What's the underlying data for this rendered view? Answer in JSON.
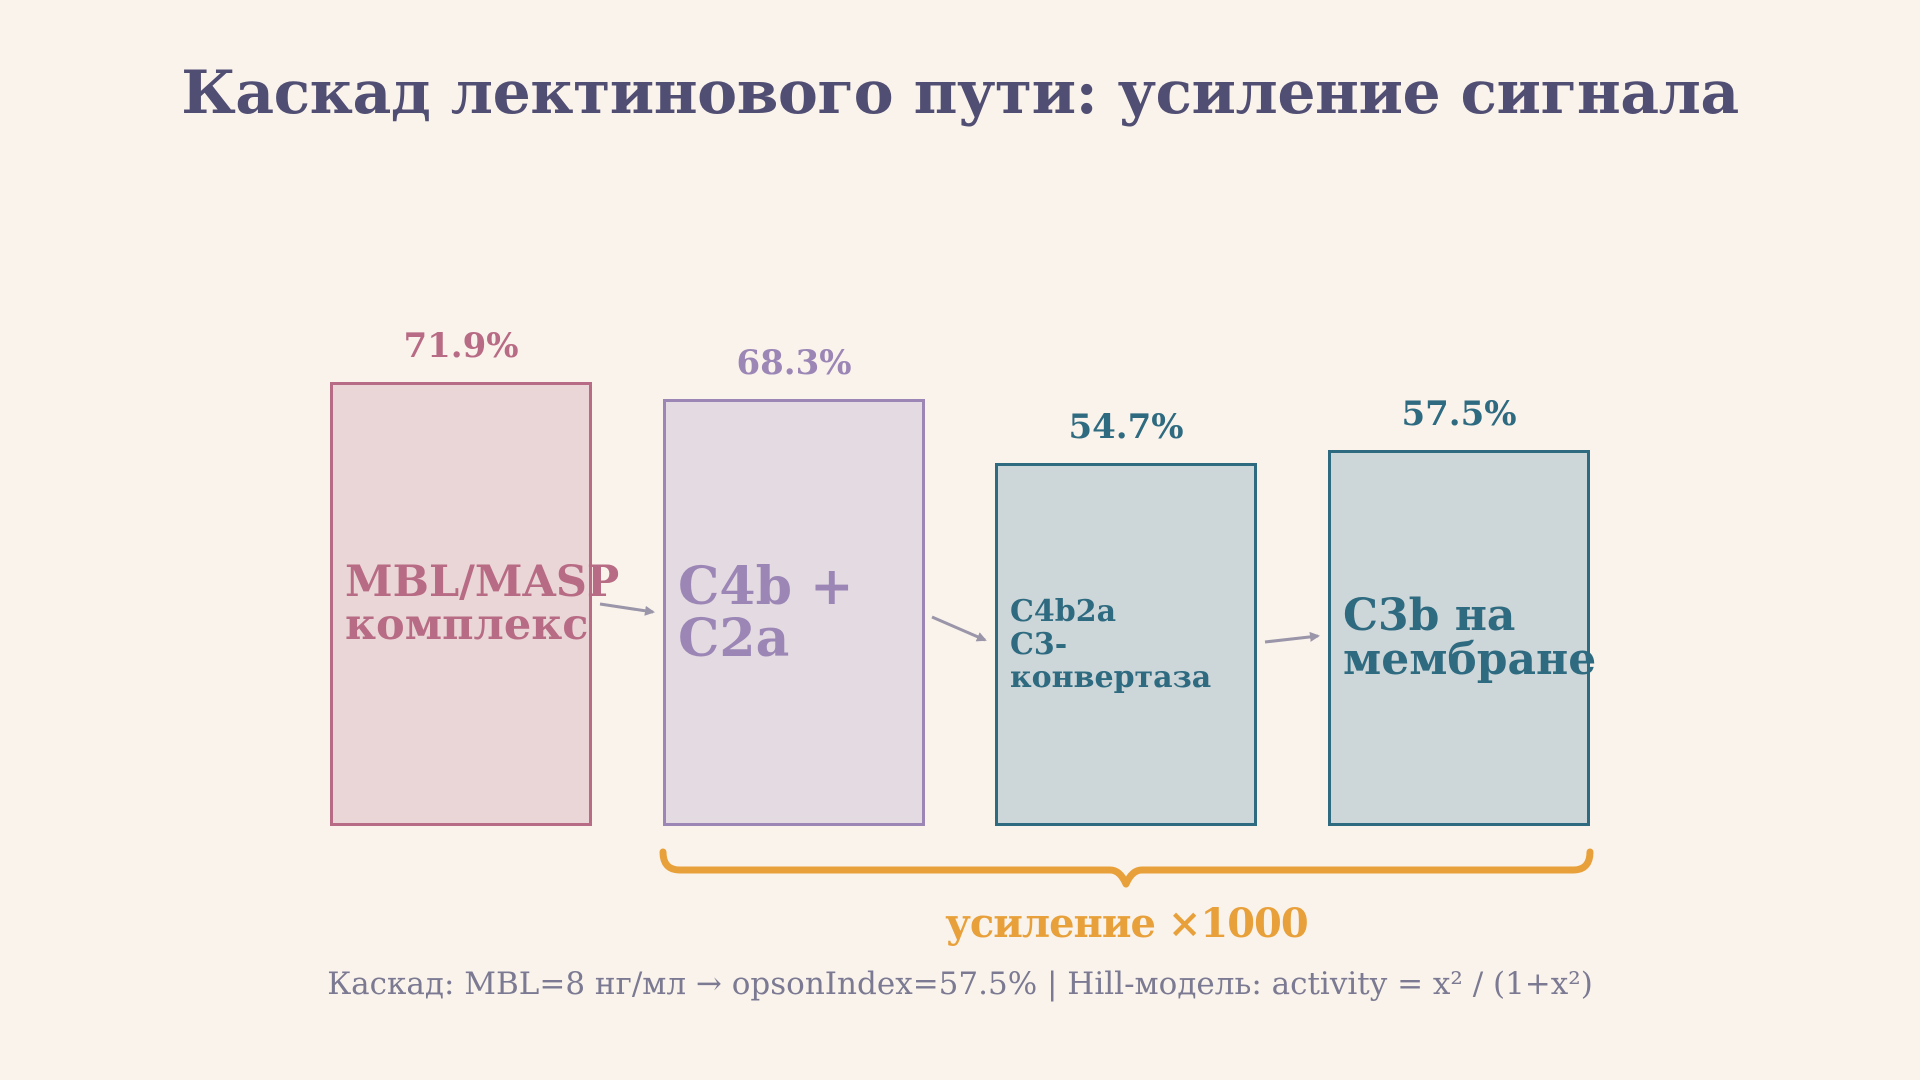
{
  "title": "Каскад лектинового пути: усиление сигнала",
  "stages": [
    {
      "label": "MBL/MASP\nкомплекс",
      "percent": "71.9%",
      "color": "#b86b84"
    },
    {
      "label": "C4b + C2a",
      "percent": "68.3%",
      "color": "#9b86b5"
    },
    {
      "label": "C4b2a\nC3-конвертаза",
      "percent": "54.7%",
      "color": "#2e6a80"
    },
    {
      "label": "C3b на\nмембране",
      "percent": "57.5%",
      "color": "#2e6a80"
    }
  ],
  "amplification": {
    "label": "усиление ×1000",
    "color": "#e8a03a"
  },
  "footer": "Каскад: MBL=8 нг/мл → opsonIndex=57.5%  |  Hill-модель: activity = x² / (1+x²)",
  "colors": {
    "background": "#faf3ec",
    "title": "#514e73",
    "arrow": "#9a95a8"
  }
}
